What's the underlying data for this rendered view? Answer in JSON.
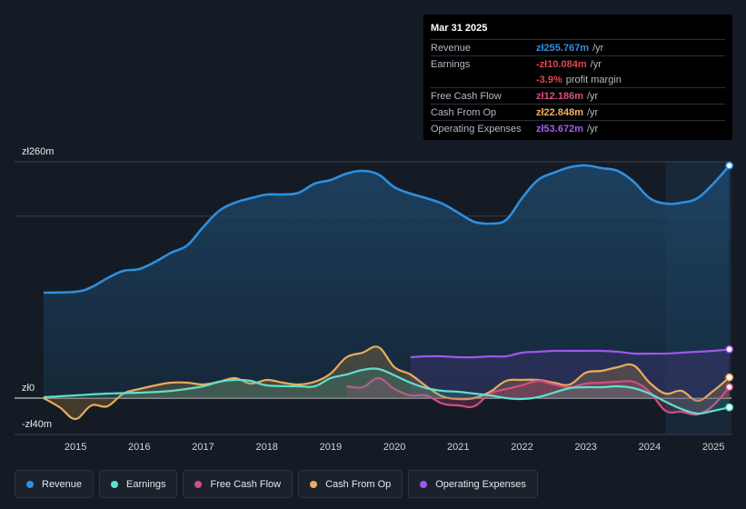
{
  "tooltip": {
    "date": "Mar 31 2025",
    "rows": [
      {
        "label": "Revenue",
        "value": "zł255.767m",
        "unit": "/yr",
        "color": "#2e8fe0"
      },
      {
        "label": "Earnings",
        "value": "-zł10.084m",
        "unit": "/yr",
        "color": "#e0474c"
      },
      {
        "label": "",
        "value": "-3.9%",
        "unit": "profit margin",
        "color": "#e0474c"
      },
      {
        "label": "Free Cash Flow",
        "value": "zł12.186m",
        "unit": "/yr",
        "color": "#d6507e"
      },
      {
        "label": "Cash From Op",
        "value": "zł22.848m",
        "unit": "/yr",
        "color": "#f2b35b"
      },
      {
        "label": "Operating Expenses",
        "value": "zł53.672m",
        "unit": "/yr",
        "color": "#a25ef0"
      }
    ]
  },
  "legend": [
    {
      "label": "Revenue",
      "color": "#2e8fe0"
    },
    {
      "label": "Earnings",
      "color": "#5fe0cf"
    },
    {
      "label": "Free Cash Flow",
      "color": "#cf4f86"
    },
    {
      "label": "Cash From Op",
      "color": "#e9ab5a"
    },
    {
      "label": "Operating Expenses",
      "color": "#9f57ee"
    }
  ],
  "chart_data": {
    "type": "area",
    "title": "",
    "xlabel": "",
    "ylabel": "",
    "y_axis_labels": [
      "zł260m",
      "zł0",
      "-zł40m"
    ],
    "ylim": [
      -40,
      260
    ],
    "xlim": [
      2014.5,
      2025.25
    ],
    "x_ticks": [
      2015,
      2016,
      2017,
      2018,
      2019,
      2020,
      2021,
      2022,
      2023,
      2024,
      2025
    ],
    "x_tick_labels": [
      "2015",
      "2016",
      "2017",
      "2018",
      "2019",
      "2020",
      "2021",
      "2022",
      "2023",
      "2024",
      "2025"
    ],
    "forecast_region_start": 2024.25,
    "series": [
      {
        "name": "Revenue",
        "color": "#2e8fe0",
        "x": [
          2014.5,
          2015.0,
          2015.25,
          2015.5,
          2015.75,
          2016.0,
          2016.25,
          2016.5,
          2016.75,
          2017.0,
          2017.25,
          2017.5,
          2017.75,
          2018.0,
          2018.25,
          2018.5,
          2018.75,
          2019.0,
          2019.25,
          2019.5,
          2019.75,
          2020.0,
          2020.25,
          2020.5,
          2020.75,
          2021.0,
          2021.25,
          2021.5,
          2021.75,
          2022.0,
          2022.25,
          2022.5,
          2022.75,
          2023.0,
          2023.25,
          2023.5,
          2023.75,
          2024.0,
          2024.25,
          2024.5,
          2024.75,
          2025.0,
          2025.25
        ],
        "values": [
          116,
          117,
          122,
          132,
          140,
          142,
          150,
          160,
          168,
          188,
          206,
          215,
          220,
          224,
          224,
          226,
          236,
          240,
          247,
          250,
          246,
          232,
          225,
          220,
          214,
          204,
          194,
          192,
          196,
          220,
          240,
          248,
          254,
          256,
          253,
          250,
          238,
          220,
          214,
          215,
          220,
          236,
          255.8
        ]
      },
      {
        "name": "Earnings",
        "color": "#5fe0cf",
        "x": [
          2014.5,
          2015.0,
          2015.5,
          2016.0,
          2016.5,
          2017.0,
          2017.25,
          2017.5,
          2017.75,
          2018.0,
          2018.5,
          2018.75,
          2019.0,
          2019.25,
          2019.5,
          2019.75,
          2020.0,
          2020.25,
          2020.5,
          2020.75,
          2021.0,
          2021.25,
          2021.5,
          2021.75,
          2022.0,
          2022.25,
          2022.5,
          2022.75,
          2023.0,
          2023.25,
          2023.5,
          2023.75,
          2024.0,
          2024.25,
          2024.5,
          2024.75,
          2025.0,
          2025.25
        ],
        "values": [
          1,
          3,
          5,
          6,
          8,
          13,
          18,
          20,
          19,
          14,
          13,
          13,
          22,
          26,
          31,
          32,
          25,
          17,
          11,
          8,
          7,
          5,
          3,
          0,
          -1,
          1,
          6,
          11,
          12,
          12,
          13,
          11,
          5,
          -4,
          -12,
          -17,
          -14,
          -10.1
        ]
      },
      {
        "name": "Free Cash Flow",
        "color": "#cf4f86",
        "x": [
          2019.25,
          2019.5,
          2019.75,
          2020.0,
          2020.25,
          2020.5,
          2020.75,
          2021.0,
          2021.25,
          2021.5,
          2021.75,
          2022.0,
          2022.25,
          2022.5,
          2022.75,
          2023.0,
          2023.25,
          2023.5,
          2023.75,
          2024.0,
          2024.25,
          2024.5,
          2024.75,
          2025.0,
          2025.25
        ],
        "values": [
          13,
          12,
          22,
          10,
          3,
          3,
          -6,
          -8,
          -9,
          5,
          10,
          14,
          19,
          15,
          12,
          16,
          17,
          18,
          18,
          7,
          -14,
          -15,
          -18,
          -8,
          12.2
        ]
      },
      {
        "name": "Cash From Op",
        "color": "#e9ab5a",
        "x": [
          2014.5,
          2014.75,
          2015.0,
          2015.25,
          2015.5,
          2015.75,
          2016.0,
          2016.25,
          2016.5,
          2016.75,
          2017.0,
          2017.25,
          2017.5,
          2017.75,
          2018.0,
          2018.25,
          2018.5,
          2018.75,
          2019.0,
          2019.25,
          2019.5,
          2019.75,
          2020.0,
          2020.25,
          2020.5,
          2020.75,
          2021.0,
          2021.25,
          2021.5,
          2021.75,
          2022.0,
          2022.25,
          2022.5,
          2022.75,
          2023.0,
          2023.25,
          2023.5,
          2023.75,
          2024.0,
          2024.25,
          2024.5,
          2024.75,
          2025.0,
          2025.25
        ],
        "values": [
          0,
          -10,
          -23,
          -8,
          -9,
          5,
          10,
          14,
          17,
          17,
          15,
          18,
          22,
          16,
          20,
          17,
          15,
          18,
          27,
          45,
          50,
          56,
          34,
          26,
          13,
          2,
          -1,
          0,
          7,
          19,
          20,
          20,
          17,
          15,
          28,
          30,
          34,
          36,
          17,
          5,
          8,
          -3,
          8,
          22.8
        ]
      },
      {
        "name": "Operating Expenses",
        "color": "#9f57ee",
        "x": [
          2020.25,
          2020.5,
          2020.75,
          2021.0,
          2021.25,
          2021.5,
          2021.75,
          2022.0,
          2022.25,
          2022.5,
          2022.75,
          2023.0,
          2023.25,
          2023.5,
          2023.75,
          2024.0,
          2024.25,
          2024.5,
          2024.75,
          2025.0,
          2025.25
        ],
        "values": [
          45,
          46,
          46,
          45,
          45,
          46,
          46,
          50,
          51,
          52,
          52,
          52,
          52,
          51,
          49,
          49,
          49,
          50,
          51,
          52,
          53.7
        ]
      }
    ]
  }
}
